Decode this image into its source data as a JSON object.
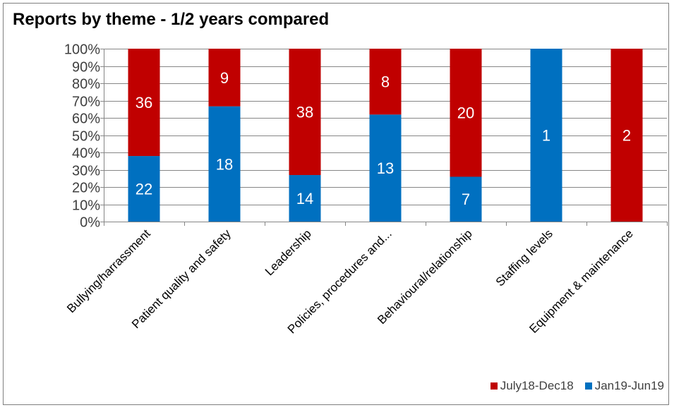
{
  "chart_data": {
    "type": "bar",
    "stacked": "percent",
    "title": "Reports by theme - 1/2 years compared",
    "categories": [
      "Bullying/harrassment",
      "Patient quality and safety",
      "Leadership",
      "Policies, procedures and...",
      "Behavioural/relationship",
      "Staffing levels",
      "Equipment & maintenance"
    ],
    "series": [
      {
        "name": "Jan19-Jun19",
        "color": "#0070c0",
        "values": [
          22,
          18,
          14,
          13,
          7,
          1,
          0
        ],
        "labels": [
          "22",
          "18",
          "14",
          "13",
          "7",
          "1",
          ""
        ]
      },
      {
        "name": "July18-Dec18",
        "color": "#c00000",
        "values": [
          36,
          9,
          38,
          8,
          20,
          0,
          2
        ],
        "labels": [
          "36",
          "9",
          "38",
          "8",
          "20",
          "",
          "2"
        ]
      }
    ],
    "y_ticks": [
      "0%",
      "10%",
      "20%",
      "30%",
      "40%",
      "50%",
      "60%",
      "70%",
      "80%",
      "90%",
      "100%"
    ],
    "ylim": [
      0,
      100
    ],
    "grid": true,
    "legend_position": "bottom-right",
    "legend_order": [
      "July18-Dec18",
      "Jan19-Jun19"
    ]
  }
}
